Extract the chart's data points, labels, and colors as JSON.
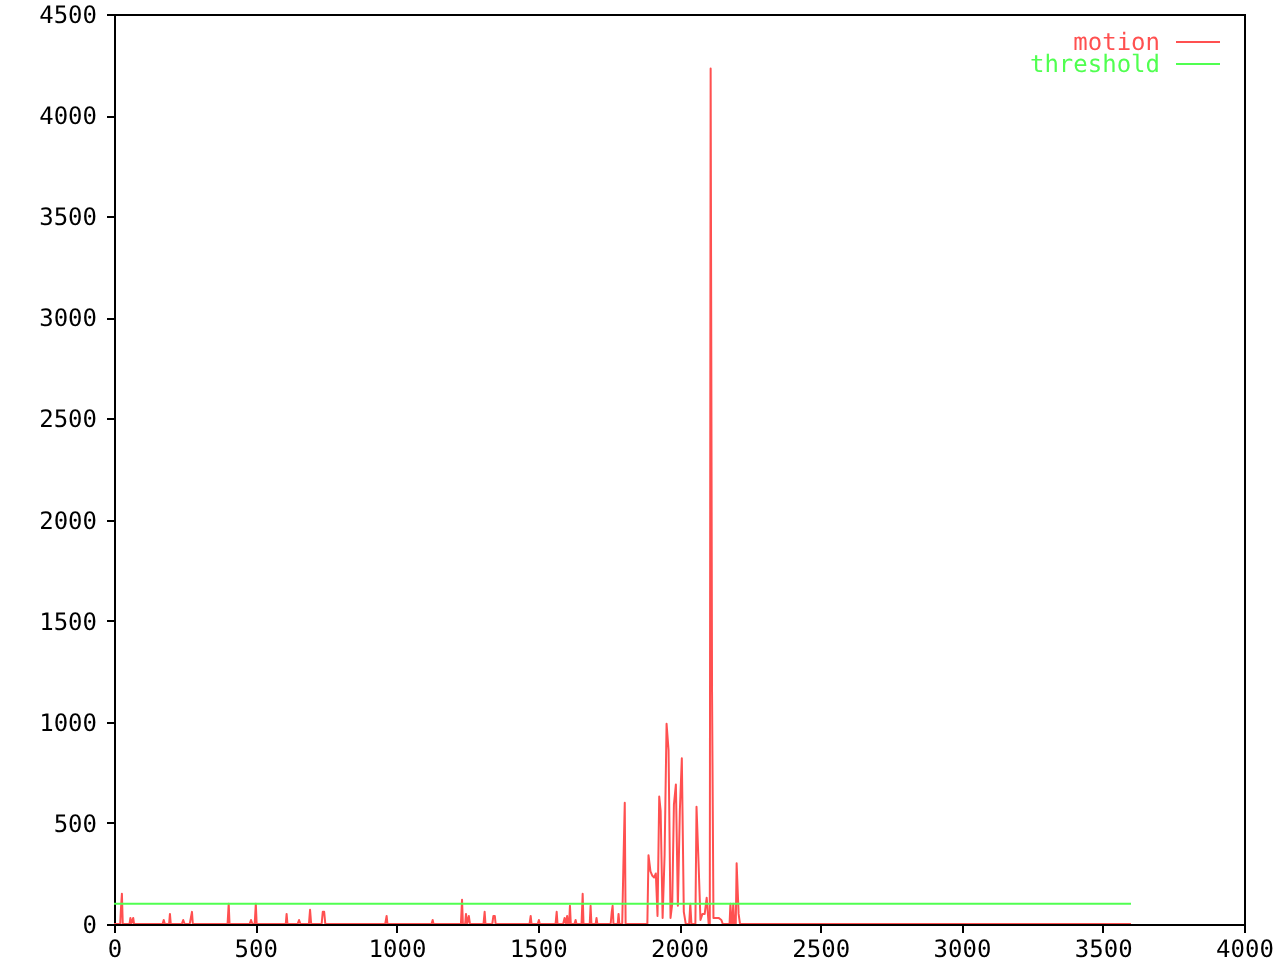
{
  "chart_data": {
    "type": "line",
    "xlim": [
      0,
      4000
    ],
    "ylim": [
      0,
      4500
    ],
    "xticks": [
      0,
      500,
      1000,
      1500,
      2000,
      2500,
      3000,
      3500,
      4000
    ],
    "yticks": [
      0,
      500,
      1000,
      1500,
      2000,
      2500,
      3000,
      3500,
      4000,
      4500
    ],
    "legend": "top right",
    "line_style": "solid",
    "series": [
      {
        "name": "motion",
        "color": "#ff5050",
        "x": [
          0,
          22,
          24,
          28,
          31,
          55,
          58,
          61,
          68,
          71,
          172,
          176,
          180,
          195,
          198,
          201,
          240,
          245,
          250,
          268,
          272,
          276,
          279,
          402,
          406,
          409,
          480,
          485,
          490,
          498,
          502,
          505,
          608,
          611,
          614,
          650,
          655,
          660,
          690,
          694,
          698,
          735,
          739,
          744,
          748,
          960,
          965,
          968,
          1124,
          1128,
          1131,
          1228,
          1232,
          1235,
          1243,
          1246,
          1250,
          1256,
          1260,
          1308,
          1312,
          1315,
          1339,
          1343,
          1348,
          1351,
          1471,
          1475,
          1478,
          1500,
          1504,
          1507,
          1563,
          1567,
          1570,
          1590,
          1595,
          1600,
          1604,
          1607,
          1611,
          1614,
          1617,
          1630,
          1634,
          1637,
          1655,
          1659,
          1662,
          1684,
          1687,
          1690,
          1705,
          1708,
          1711,
          1758,
          1762,
          1765,
          1768,
          1783,
          1786,
          1789,
          1799,
          1803,
          1808,
          1811,
          1888,
          1892,
          1899,
          1905,
          1912,
          1918,
          1924,
          1930,
          1935,
          1942,
          1949,
          1956,
          1963,
          1970,
          1976,
          1982,
          1989,
          1996,
          2003,
          2010,
          2017,
          2024,
          2036,
          2040,
          2044,
          2058,
          2062,
          2069,
          2076,
          2083,
          2091,
          2098,
          2105,
          2109,
          2112,
          2117,
          2122,
          2130,
          2140,
          2150,
          2155,
          2179,
          2182,
          2186,
          2189,
          2192,
          2196,
          2201,
          2204,
          2211,
          2216,
          3600
        ],
        "values": [
          0,
          0,
          60,
          150,
          0,
          0,
          30,
          0,
          30,
          0,
          0,
          20,
          0,
          0,
          50,
          0,
          0,
          20,
          0,
          0,
          30,
          60,
          0,
          0,
          100,
          0,
          0,
          20,
          0,
          0,
          100,
          0,
          0,
          50,
          0,
          0,
          20,
          0,
          0,
          70,
          0,
          0,
          60,
          60,
          0,
          0,
          40,
          0,
          0,
          20,
          0,
          0,
          120,
          0,
          0,
          50,
          0,
          40,
          0,
          0,
          60,
          0,
          0,
          40,
          40,
          0,
          0,
          40,
          0,
          0,
          20,
          0,
          0,
          60,
          0,
          0,
          30,
          0,
          40,
          0,
          0,
          90,
          0,
          0,
          20,
          0,
          0,
          150,
          0,
          0,
          90,
          0,
          0,
          30,
          0,
          0,
          60,
          90,
          0,
          0,
          50,
          0,
          0,
          280,
          600,
          0,
          0,
          340,
          260,
          240,
          230,
          250,
          40,
          630,
          560,
          30,
          340,
          990,
          860,
          30,
          100,
          590,
          690,
          90,
          560,
          820,
          60,
          0,
          0,
          100,
          0,
          0,
          580,
          310,
          20,
          50,
          50,
          130,
          0,
          0,
          4230,
          1140,
          30,
          30,
          30,
          20,
          0,
          0,
          100,
          0,
          0,
          100,
          0,
          0,
          300,
          50,
          0,
          0
        ]
      },
      {
        "name": "threshold",
        "color": "#50ff50",
        "x": [
          0,
          3600
        ],
        "values": [
          100,
          100
        ]
      }
    ]
  }
}
